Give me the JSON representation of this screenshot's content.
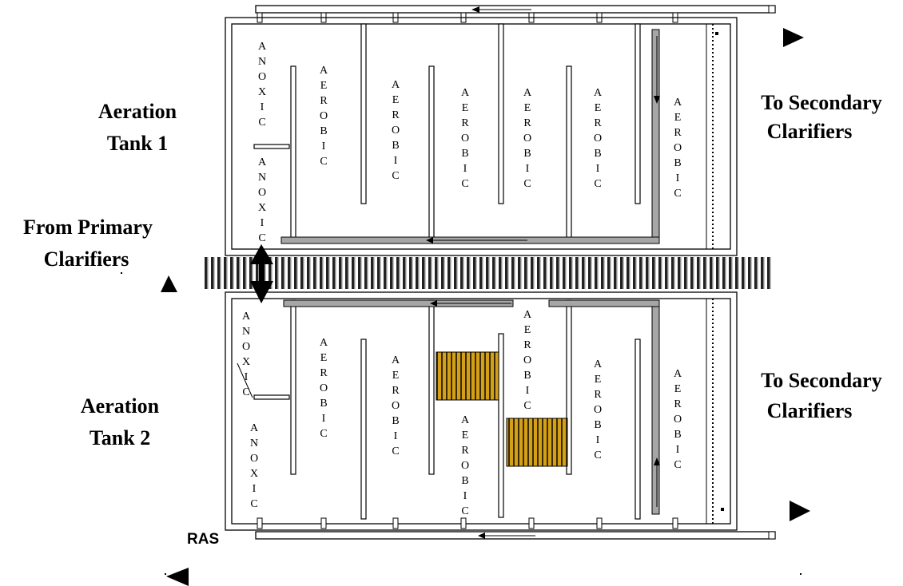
{
  "labels": {
    "tank1": [
      "Aeration",
      "Tank 1"
    ],
    "tank2": [
      "Aeration",
      "Tank 2"
    ],
    "from_primary": [
      "From Primary",
      "Clarifiers"
    ],
    "to_secondary_1": [
      "To Secondary",
      "Clarifiers"
    ],
    "to_secondary_2": [
      "To Secondary",
      "Clarifiers"
    ],
    "ras": "RAS"
  },
  "zones": {
    "anoxic": "ANOXIC",
    "aerobic": "AEROBIC"
  },
  "colors": {
    "channel_gray": "#a6a6a6",
    "media_gold": "#d4a017",
    "media_dark": "#3a2a00"
  },
  "icons": [
    "triangle-arrow-right-icon",
    "triangle-arrow-up-icon",
    "triangle-arrow-left-icon",
    "double-arrow-icon"
  ]
}
